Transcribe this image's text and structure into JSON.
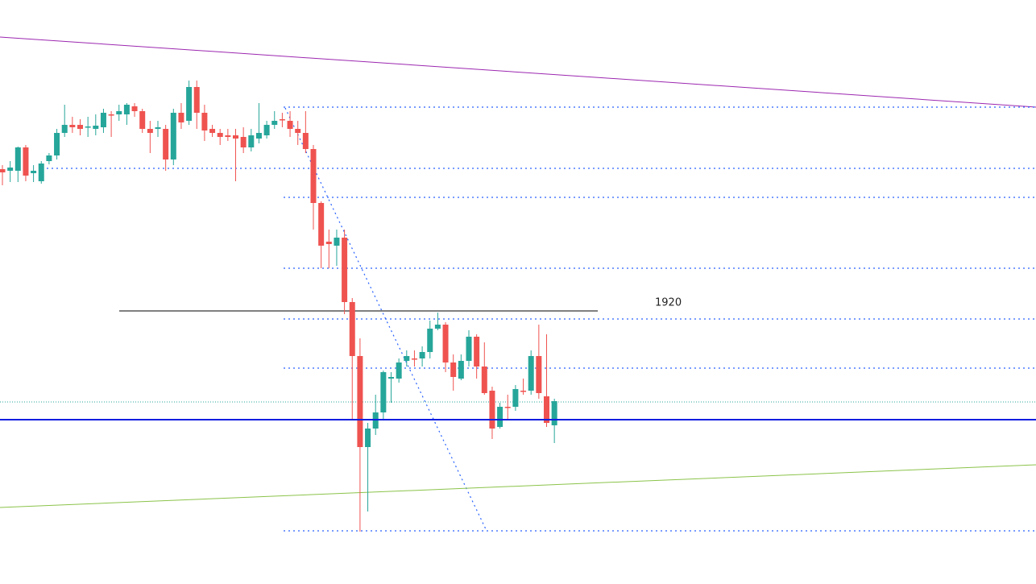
{
  "annotation": {
    "label": "1920"
  }
}
